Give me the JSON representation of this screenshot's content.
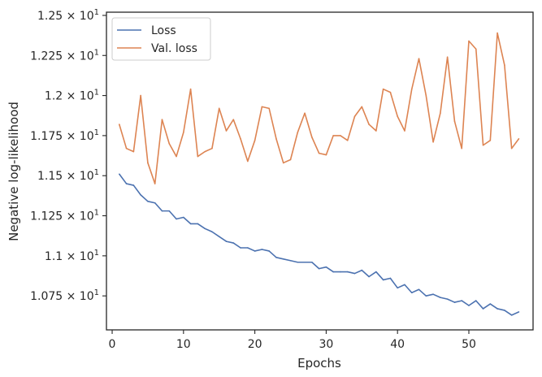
{
  "chart_data": {
    "type": "line",
    "xlabel": "Epochs",
    "ylabel": "Negative log-likelihood",
    "xlim": [
      -0.8,
      59
    ],
    "ylim": [
      10.538,
      12.52
    ],
    "x_ticks": [
      0,
      10,
      20,
      30,
      40,
      50
    ],
    "x_tick_labels": [
      "0",
      "10",
      "20",
      "30",
      "40",
      "50"
    ],
    "y_ticks": [
      10.75,
      11.0,
      11.25,
      11.5,
      11.75,
      12.0,
      12.25,
      12.5
    ],
    "y_tick_labels": [
      {
        "mantissa": "1.075",
        "exponent": "1"
      },
      {
        "mantissa": "1.1",
        "exponent": "1"
      },
      {
        "mantissa": "1.125",
        "exponent": "1"
      },
      {
        "mantissa": "1.15",
        "exponent": "1"
      },
      {
        "mantissa": "1.175",
        "exponent": "1"
      },
      {
        "mantissa": "1.2",
        "exponent": "1"
      },
      {
        "mantissa": "1.225",
        "exponent": "1"
      },
      {
        "mantissa": "1.25",
        "exponent": "1"
      }
    ],
    "legend_placement": "top-left",
    "grid": false,
    "x": [
      1,
      2,
      3,
      4,
      5,
      6,
      7,
      8,
      9,
      10,
      11,
      12,
      13,
      14,
      15,
      16,
      17,
      18,
      19,
      20,
      21,
      22,
      23,
      24,
      25,
      26,
      27,
      28,
      29,
      30,
      31,
      32,
      33,
      34,
      35,
      36,
      37,
      38,
      39,
      40,
      41,
      42,
      43,
      44,
      45,
      46,
      47,
      48,
      49,
      50,
      51,
      52,
      53,
      54,
      55,
      56,
      57
    ],
    "series": [
      {
        "name": "Loss",
        "color": "#4c72b0",
        "values": [
          11.51,
          11.45,
          11.44,
          11.38,
          11.34,
          11.33,
          11.28,
          11.28,
          11.23,
          11.24,
          11.2,
          11.2,
          11.17,
          11.15,
          11.12,
          11.09,
          11.08,
          11.05,
          11.05,
          11.03,
          11.04,
          11.03,
          10.99,
          10.98,
          10.97,
          10.96,
          10.96,
          10.96,
          10.92,
          10.93,
          10.9,
          10.9,
          10.9,
          10.89,
          10.91,
          10.87,
          10.9,
          10.85,
          10.86,
          10.8,
          10.82,
          10.77,
          10.79,
          10.75,
          10.76,
          10.74,
          10.73,
          10.71,
          10.72,
          10.69,
          10.72,
          10.67,
          10.7,
          10.67,
          10.66,
          10.63,
          10.65
        ]
      },
      {
        "name": "Val. loss",
        "color": "#dd8452",
        "values": [
          11.82,
          11.67,
          11.65,
          12.0,
          11.58,
          11.45,
          11.85,
          11.7,
          11.62,
          11.77,
          12.04,
          11.62,
          11.65,
          11.67,
          11.92,
          11.78,
          11.85,
          11.73,
          11.59,
          11.72,
          11.93,
          11.92,
          11.73,
          11.58,
          11.6,
          11.77,
          11.89,
          11.74,
          11.64,
          11.63,
          11.75,
          11.75,
          11.72,
          11.87,
          11.93,
          11.82,
          11.78,
          12.04,
          12.02,
          11.87,
          11.78,
          12.04,
          12.23,
          12.0,
          11.71,
          11.89,
          12.24,
          11.84,
          11.67,
          12.34,
          12.29,
          11.69,
          11.72,
          12.39,
          12.19,
          11.67,
          11.73
        ]
      }
    ]
  }
}
